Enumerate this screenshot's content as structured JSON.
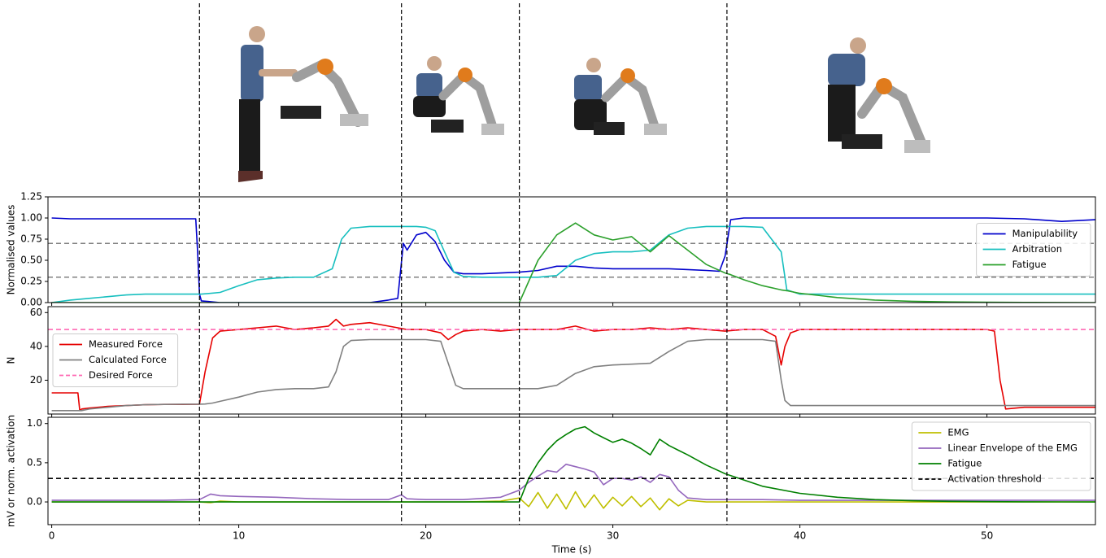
{
  "phase_boundaries": [
    7.9,
    18.7,
    25.0,
    36.1
  ],
  "chart_data": [
    {
      "type": "line",
      "ylabel": "Normalised values",
      "xlim": [
        -0.2,
        55.8
      ],
      "xticks": [
        0,
        10,
        20,
        30,
        40,
        50
      ],
      "show_xtick_labels": false,
      "ylim": [
        0,
        1.25
      ],
      "yticks": [
        {
          "value": 0,
          "label": "0.00"
        },
        {
          "value": 0.25,
          "label": "0.25"
        },
        {
          "value": 0.5,
          "label": "0.50"
        },
        {
          "value": 0.75,
          "label": "0.75"
        },
        {
          "value": 1.0,
          "label": "1.00"
        },
        {
          "value": 1.25,
          "label": "1.25"
        }
      ],
      "hlines": [
        0.3,
        0.7
      ],
      "hline_color": "#808080",
      "legend": "center right",
      "x": [
        0,
        1,
        2,
        3,
        4,
        5,
        6,
        7,
        7.7,
        7.8,
        7.9,
        8,
        9,
        10,
        11,
        12,
        13,
        14,
        15,
        15.5,
        16,
        17,
        18,
        18.5,
        18.8,
        19,
        19.5,
        20,
        20.5,
        21,
        21.5,
        22,
        23,
        24,
        25,
        26,
        27,
        28,
        29,
        30,
        31,
        32,
        33,
        34,
        35,
        35.7,
        36,
        36.3,
        37,
        38,
        39,
        39.3,
        40,
        42,
        44,
        46,
        48,
        50,
        52,
        54,
        55.8
      ],
      "series": [
        {
          "name": "Manipulability",
          "color": "#0000cc",
          "values": [
            1.0,
            0.99,
            0.99,
            0.99,
            0.99,
            0.99,
            0.99,
            0.99,
            0.99,
            0.6,
            0.1,
            0.02,
            0,
            0,
            0,
            0,
            0,
            0,
            0,
            0,
            0,
            0,
            0.03,
            0.05,
            0.7,
            0.62,
            0.8,
            0.83,
            0.72,
            0.5,
            0.36,
            0.34,
            0.34,
            0.35,
            0.36,
            0.38,
            0.43,
            0.43,
            0.41,
            0.4,
            0.4,
            0.4,
            0.4,
            0.39,
            0.38,
            0.37,
            0.55,
            0.98,
            1.0,
            1.0,
            1.0,
            1.0,
            1.0,
            1.0,
            1.0,
            1.0,
            1.0,
            1.0,
            0.99,
            0.96,
            0.98
          ]
        },
        {
          "name": "Arbitration",
          "color": "#17bfbf",
          "values": [
            0,
            0.03,
            0.05,
            0.07,
            0.09,
            0.1,
            0.1,
            0.1,
            0.1,
            0.1,
            0.1,
            0.1,
            0.12,
            0.2,
            0.27,
            0.29,
            0.3,
            0.3,
            0.4,
            0.75,
            0.88,
            0.9,
            0.9,
            0.9,
            0.9,
            0.9,
            0.9,
            0.89,
            0.85,
            0.6,
            0.36,
            0.31,
            0.3,
            0.3,
            0.3,
            0.3,
            0.32,
            0.5,
            0.58,
            0.6,
            0.6,
            0.62,
            0.8,
            0.88,
            0.9,
            0.9,
            0.9,
            0.9,
            0.9,
            0.89,
            0.6,
            0.15,
            0.1,
            0.1,
            0.1,
            0.1,
            0.1,
            0.1,
            0.1,
            0.1,
            0.1
          ]
        },
        {
          "name": "Fatigue",
          "color": "#2ca02c",
          "values": [
            0,
            0,
            0,
            0,
            0,
            0,
            0,
            0,
            0,
            0,
            0,
            0,
            0,
            0,
            0,
            0,
            0,
            0,
            0,
            0,
            0,
            0,
            0,
            0,
            0,
            0,
            0,
            0,
            0,
            0,
            0,
            0,
            0,
            0,
            0,
            0.5,
            0.8,
            0.94,
            0.8,
            0.74,
            0.78,
            0.6,
            0.79,
            0.62,
            0.45,
            0.38,
            0.35,
            0.33,
            0.27,
            0.2,
            0.15,
            0.14,
            0.11,
            0.06,
            0.03,
            0.015,
            0.008,
            0.004,
            0.002,
            0.001,
            0
          ]
        }
      ]
    },
    {
      "type": "line",
      "ylabel": "N",
      "xlim": [
        -0.2,
        55.8
      ],
      "xticks": [
        0,
        10,
        20,
        30,
        40,
        50
      ],
      "show_xtick_labels": false,
      "ylim": [
        0,
        63.5
      ],
      "yticks": [
        20,
        40,
        60
      ],
      "legend": "center left",
      "x": [
        0,
        1.4,
        1.5,
        1.6,
        2,
        3,
        4,
        5,
        6,
        7,
        7.9,
        8.2,
        8.6,
        9,
        10,
        11,
        12,
        13,
        14,
        14.8,
        15.2,
        15.6,
        16,
        17,
        18,
        19,
        20,
        20.8,
        21.2,
        21.6,
        22,
        23,
        24,
        25,
        26,
        27,
        28,
        29,
        30,
        31,
        32,
        33,
        34,
        35,
        36,
        37,
        38,
        38.7,
        39,
        39.2,
        39.5,
        40,
        42,
        44,
        46,
        48,
        50,
        50.4,
        50.7,
        51,
        52,
        54,
        55.8
      ],
      "series": [
        {
          "name": "Measured Force",
          "color": "#e60000",
          "values": [
            12.5,
            12.5,
            2,
            3,
            3.5,
            4.5,
            5,
            5.5,
            5.7,
            5.7,
            5.8,
            25,
            45,
            49,
            50,
            51,
            52,
            50,
            51,
            52,
            56,
            52,
            53,
            54,
            52,
            50,
            50,
            48,
            44,
            47,
            49,
            50,
            49,
            50,
            50,
            50,
            52,
            49,
            50,
            50,
            51,
            50,
            51,
            50,
            49,
            50,
            50,
            46,
            29,
            40,
            48,
            50,
            50,
            50,
            50,
            50,
            50,
            49,
            20,
            3,
            4,
            4,
            4
          ]
        },
        {
          "name": "Calculated Force",
          "color": "#808080",
          "values": [
            2,
            2,
            2,
            2,
            3,
            4,
            5,
            5.5,
            5.7,
            5.8,
            5.8,
            5.9,
            6.5,
            7.5,
            10,
            13,
            14.5,
            15,
            15,
            16,
            25,
            40,
            43.5,
            44,
            44,
            44,
            44,
            43,
            30,
            17,
            15,
            15,
            15,
            15,
            15,
            17,
            24,
            28,
            29,
            29.5,
            30,
            37,
            43,
            44,
            44,
            44,
            44,
            43,
            20,
            8,
            5,
            5,
            5,
            5,
            5,
            5,
            5,
            5,
            5,
            5,
            5,
            5,
            5
          ]
        },
        {
          "name": "Desired Force",
          "color": "#ff69b4",
          "dashed": true,
          "x": [
            -0.2,
            55.8
          ],
          "values": [
            50,
            50
          ]
        }
      ]
    },
    {
      "type": "line",
      "ylabel": "mV or norm. activation",
      "xlabel": "Time (s)",
      "xlim": [
        -0.2,
        55.8
      ],
      "xticks": [
        0,
        10,
        20,
        30,
        40,
        50
      ],
      "show_xtick_labels": true,
      "ylim": [
        -0.29,
        1.08
      ],
      "yticks": [
        {
          "value": 0,
          "label": "0.0"
        },
        {
          "value": 0.5,
          "label": "0.5"
        },
        {
          "value": 1.0,
          "label": "1.0"
        }
      ],
      "legend": "upper right",
      "x": [
        0,
        2,
        4,
        6,
        7.9,
        8.5,
        9,
        10,
        12,
        14,
        16,
        18,
        18.7,
        19,
        20,
        22,
        24,
        25,
        25.5,
        26,
        26.5,
        27,
        27.5,
        28,
        28.5,
        29,
        29.5,
        30,
        30.5,
        31,
        31.5,
        32,
        32.5,
        33,
        33.5,
        34,
        35,
        36,
        38,
        40,
        42,
        44,
        46,
        48,
        50,
        52,
        54,
        55.8
      ],
      "series": [
        {
          "name": "EMG",
          "color": "#bfbf00",
          "values": [
            0,
            0,
            0,
            0,
            0,
            -0.01,
            0.01,
            0,
            0,
            0,
            0,
            0,
            0,
            0,
            0,
            0,
            0.01,
            0.05,
            -0.06,
            0.12,
            -0.08,
            0.1,
            -0.09,
            0.13,
            -0.07,
            0.09,
            -0.08,
            0.06,
            -0.05,
            0.07,
            -0.06,
            0.05,
            -0.1,
            0.04,
            -0.05,
            0.02,
            0,
            0,
            0,
            0,
            0,
            0,
            0,
            0,
            0,
            0,
            0,
            0
          ]
        },
        {
          "name": "Linear Envelope of the EMG",
          "color": "#9467bd",
          "values": [
            0.02,
            0.02,
            0.02,
            0.02,
            0.03,
            0.1,
            0.08,
            0.07,
            0.06,
            0.04,
            0.03,
            0.03,
            0.09,
            0.04,
            0.03,
            0.03,
            0.06,
            0.15,
            0.25,
            0.33,
            0.4,
            0.38,
            0.48,
            0.45,
            0.42,
            0.38,
            0.22,
            0.3,
            0.3,
            0.28,
            0.32,
            0.25,
            0.35,
            0.32,
            0.15,
            0.05,
            0.03,
            0.03,
            0.03,
            0.02,
            0.02,
            0.02,
            0.02,
            0.02,
            0.02,
            0.02,
            0.02,
            0.02
          ]
        },
        {
          "name": "Fatigue",
          "color": "#008000",
          "values": [
            0,
            0,
            0,
            0,
            0,
            0,
            0,
            0,
            0,
            0,
            0,
            0,
            0,
            0,
            0,
            0,
            0,
            0,
            0.3,
            0.5,
            0.66,
            0.78,
            0.86,
            0.93,
            0.96,
            0.88,
            0.82,
            0.76,
            0.8,
            0.75,
            0.68,
            0.6,
            0.8,
            0.72,
            0.66,
            0.6,
            0.47,
            0.36,
            0.2,
            0.11,
            0.06,
            0.03,
            0.015,
            0.008,
            0.004,
            0.002,
            0.001,
            0
          ]
        },
        {
          "name": "Activation threshold",
          "color": "#000000",
          "dashed": true,
          "x": [
            -0.2,
            55.8
          ],
          "values": [
            0.3,
            0.3
          ]
        }
      ]
    }
  ]
}
